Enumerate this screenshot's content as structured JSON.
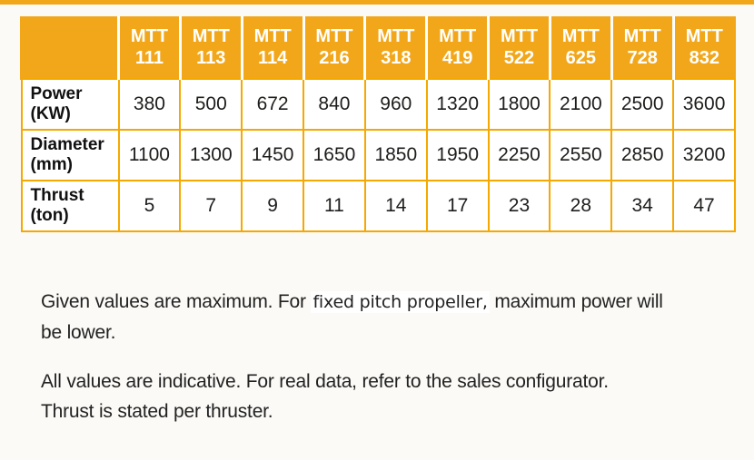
{
  "colors": {
    "accent_orange": "#F2A71B",
    "grid_orange": "#F5A800",
    "header_text": "#FFFFFF",
    "body_text": "#1D1D1B"
  },
  "table": {
    "prefix": "MTT",
    "models": [
      "111",
      "113",
      "114",
      "216",
      "318",
      "419",
      "522",
      "625",
      "728",
      "832"
    ],
    "rows": [
      {
        "label": "Power",
        "unit": "(KW)",
        "values": [
          "380",
          "500",
          "672",
          "840",
          "960",
          "1320",
          "1800",
          "2100",
          "2500",
          "3600"
        ]
      },
      {
        "label": "Diameter",
        "unit": "(mm)",
        "values": [
          "1100",
          "1300",
          "1450",
          "1650",
          "1850",
          "1950",
          "2250",
          "2550",
          "2850",
          "3200"
        ]
      },
      {
        "label": "Thrust",
        "unit": "(ton)",
        "values": [
          "5",
          "7",
          "9",
          "11",
          "14",
          "17",
          "23",
          "28",
          "34",
          "47"
        ]
      }
    ]
  },
  "notes": {
    "p1": {
      "line1_pre": "Given values are maximum. For ",
      "line1_highlight": "fixed pitch propeller,",
      "line1_post": " maximum power will",
      "line2": "be lower."
    },
    "p2": {
      "line1": "All values are indicative. For real data, refer to the sales configurator.",
      "line2": "Thrust is stated per thruster."
    }
  }
}
